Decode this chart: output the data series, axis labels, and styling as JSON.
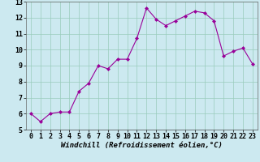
{
  "x": [
    0,
    1,
    2,
    3,
    4,
    5,
    6,
    7,
    8,
    9,
    10,
    11,
    12,
    13,
    14,
    15,
    16,
    17,
    18,
    19,
    20,
    21,
    22,
    23
  ],
  "y": [
    6.0,
    5.5,
    6.0,
    6.1,
    6.1,
    7.4,
    7.9,
    9.0,
    8.8,
    9.4,
    9.4,
    10.7,
    12.6,
    11.9,
    11.5,
    11.8,
    12.1,
    12.4,
    12.3,
    11.8,
    9.6,
    9.9,
    10.1,
    9.1
  ],
  "line_color": "#990099",
  "marker": "D",
  "marker_size": 2.0,
  "bg_color": "#cce9f0",
  "grid_color": "#99ccbb",
  "xlabel": "Windchill (Refroidissement éolien,°C)",
  "xlabel_fontsize": 6.5,
  "tick_fontsize": 6.0,
  "ylim": [
    5,
    13
  ],
  "xlim": [
    -0.5,
    23.5
  ],
  "yticks": [
    5,
    6,
    7,
    8,
    9,
    10,
    11,
    12,
    13
  ],
  "xticks": [
    0,
    1,
    2,
    3,
    4,
    5,
    6,
    7,
    8,
    9,
    10,
    11,
    12,
    13,
    14,
    15,
    16,
    17,
    18,
    19,
    20,
    21,
    22,
    23
  ]
}
